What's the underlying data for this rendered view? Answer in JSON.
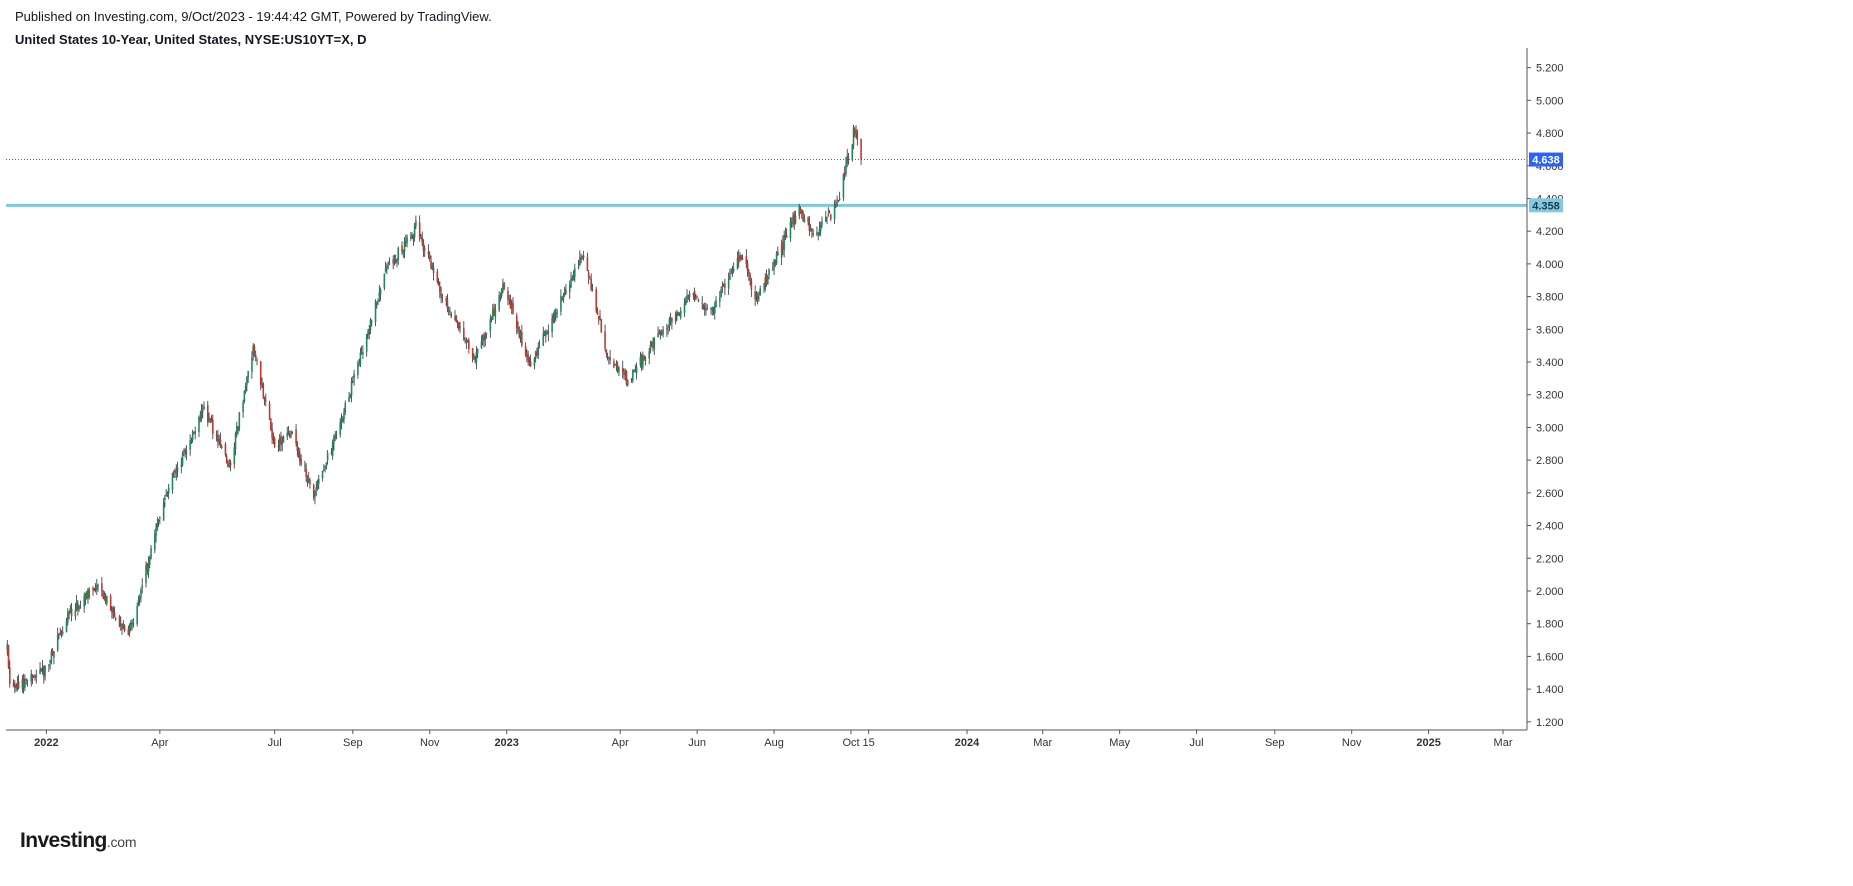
{
  "header": {
    "published": "Published on Investing.com, 9/Oct/2023 - 19:44:42 GMT, Powered by TradingView.",
    "symbol": "United States 10-Year, United States, NYSE:US10YT=X, D"
  },
  "brand": {
    "main": "Investing",
    "suffix": ".com"
  },
  "colors": {
    "up": "#26a69a",
    "up_body": "#1e8a5a",
    "down": "#c0392b",
    "wick": "#2a2e39",
    "price_line": "#2962ff",
    "price_badge": "#2962ff",
    "level_line": "#7ec8dc",
    "level_badge": "#80cbe0",
    "axis": "#555555"
  },
  "chart_data": {
    "type": "candlestick",
    "title": "",
    "xlabel": "",
    "ylabel": "",
    "interval": "D",
    "grid": false,
    "ylim": [
      1.15,
      5.32
    ],
    "xlim": [
      "2021-11-30",
      "2025-03-20"
    ],
    "y_ticks": [
      1.2,
      1.4,
      1.6,
      1.8,
      2.0,
      2.2,
      2.4,
      2.6,
      2.8,
      3.0,
      3.2,
      3.4,
      3.6,
      3.8,
      4.0,
      4.2,
      4.4,
      4.6,
      4.8,
      5.0,
      5.2
    ],
    "y_tick_labels": [
      "1.200",
      "1.400",
      "1.600",
      "1.800",
      "2.000",
      "2.200",
      "2.400",
      "2.600",
      "2.800",
      "3.000",
      "3.200",
      "3.400",
      "3.600",
      "3.800",
      "4.000",
      "4.200",
      "4.400",
      "4.600",
      "4.800",
      "5.000",
      "5.200"
    ],
    "x_ticks": [
      {
        "date": "2022-01-01",
        "label": "2022",
        "bold": true
      },
      {
        "date": "2022-04-01",
        "label": "Apr",
        "bold": false
      },
      {
        "date": "2022-07-01",
        "label": "Jul",
        "bold": false
      },
      {
        "date": "2022-09-01",
        "label": "Sep",
        "bold": false
      },
      {
        "date": "2022-11-01",
        "label": "Nov",
        "bold": false
      },
      {
        "date": "2023-01-01",
        "label": "2023",
        "bold": true
      },
      {
        "date": "2023-04-01",
        "label": "Apr",
        "bold": false
      },
      {
        "date": "2023-06-01",
        "label": "Jun",
        "bold": false
      },
      {
        "date": "2023-08-01",
        "label": "Aug",
        "bold": false
      },
      {
        "date": "2023-10-01",
        "label": "Oct",
        "bold": false
      },
      {
        "date": "2023-10-15",
        "label": "15",
        "bold": false
      },
      {
        "date": "2024-01-01",
        "label": "2024",
        "bold": true
      },
      {
        "date": "2024-03-01",
        "label": "Mar",
        "bold": false
      },
      {
        "date": "2024-05-01",
        "label": "May",
        "bold": false
      },
      {
        "date": "2024-07-01",
        "label": "Jul",
        "bold": false
      },
      {
        "date": "2024-09-01",
        "label": "Sep",
        "bold": false
      },
      {
        "date": "2024-11-01",
        "label": "Nov",
        "bold": false
      },
      {
        "date": "2025-01-01",
        "label": "2025",
        "bold": true
      },
      {
        "date": "2025-03-01",
        "label": "Mar",
        "bold": false
      }
    ],
    "series": [
      {
        "name": "US10YT",
        "close_path": [
          {
            "date": "2021-12-01",
            "value": 1.65
          },
          {
            "date": "2021-12-03",
            "value": 1.43
          },
          {
            "date": "2021-12-14",
            "value": 1.44
          },
          {
            "date": "2021-12-31",
            "value": 1.51
          },
          {
            "date": "2022-01-18",
            "value": 1.85
          },
          {
            "date": "2022-02-10",
            "value": 2.04
          },
          {
            "date": "2022-03-07",
            "value": 1.72
          },
          {
            "date": "2022-04-06",
            "value": 2.6
          },
          {
            "date": "2022-05-06",
            "value": 3.12
          },
          {
            "date": "2022-05-26",
            "value": 2.75
          },
          {
            "date": "2022-06-14",
            "value": 3.48
          },
          {
            "date": "2022-07-01",
            "value": 2.88
          },
          {
            "date": "2022-07-15",
            "value": 2.96
          },
          {
            "date": "2022-08-01",
            "value": 2.58
          },
          {
            "date": "2022-08-22",
            "value": 3.02
          },
          {
            "date": "2022-09-27",
            "value": 3.95
          },
          {
            "date": "2022-10-21",
            "value": 4.23
          },
          {
            "date": "2022-11-10",
            "value": 3.82
          },
          {
            "date": "2022-12-07",
            "value": 3.42
          },
          {
            "date": "2022-12-30",
            "value": 3.87
          },
          {
            "date": "2023-01-19",
            "value": 3.37
          },
          {
            "date": "2023-03-02",
            "value": 4.06
          },
          {
            "date": "2023-03-24",
            "value": 3.38
          },
          {
            "date": "2023-04-06",
            "value": 3.29
          },
          {
            "date": "2023-05-26",
            "value": 3.8
          },
          {
            "date": "2023-06-13",
            "value": 3.72
          },
          {
            "date": "2023-07-06",
            "value": 4.06
          },
          {
            "date": "2023-07-18",
            "value": 3.78
          },
          {
            "date": "2023-08-21",
            "value": 4.34
          },
          {
            "date": "2023-09-01",
            "value": 4.17
          },
          {
            "date": "2023-09-20",
            "value": 4.35
          },
          {
            "date": "2023-10-03",
            "value": 4.8
          },
          {
            "date": "2023-10-06",
            "value": 4.78
          },
          {
            "date": "2023-10-09",
            "value": 4.638
          }
        ]
      }
    ],
    "annotations": [
      {
        "type": "price_line",
        "value": 4.638,
        "label": "4.638",
        "style": "dotted"
      },
      {
        "type": "horizontal_level",
        "value": 4.358,
        "label": "4.358",
        "style": "solid"
      }
    ]
  }
}
